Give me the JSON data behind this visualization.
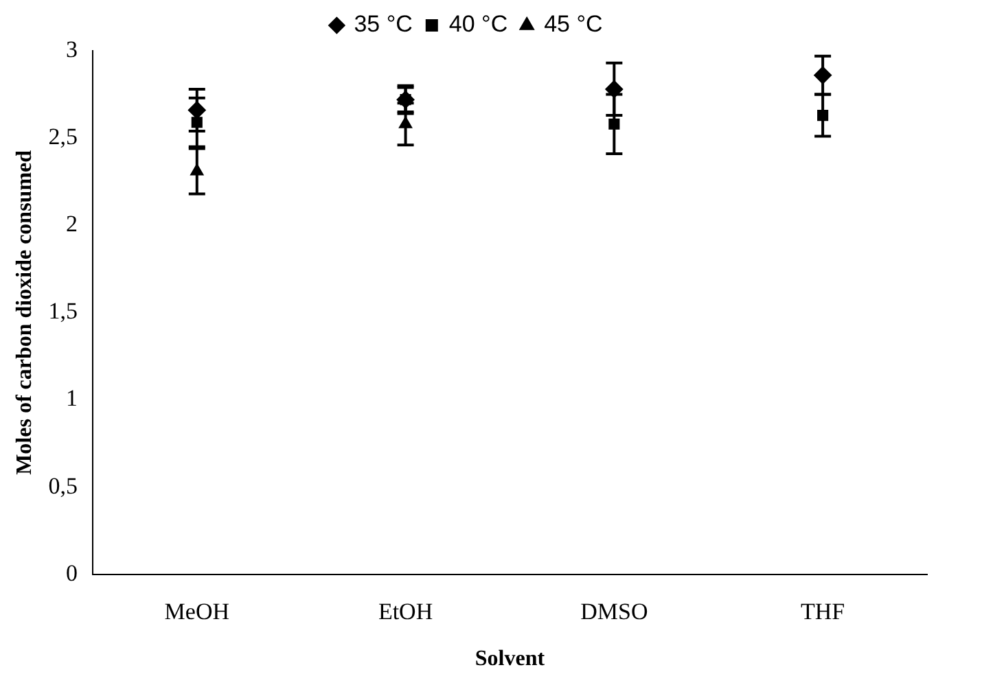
{
  "chart_data": {
    "type": "scatter",
    "xlabel": "Solvent",
    "ylabel": "Moles of carbon dioxide consumed",
    "categories": [
      "MeOH",
      "EtOH",
      "DMSO",
      "THF"
    ],
    "series": [
      {
        "name": "35 °C",
        "color": "#000000",
        "marker": "diamond",
        "values": [
          2.66,
          2.72,
          2.78,
          2.86
        ],
        "errors": [
          0.12,
          0.08,
          0.15,
          0.11
        ]
      },
      {
        "name": "40 °C",
        "color": "#000000",
        "marker": "square",
        "values": [
          2.59,
          2.72,
          2.58,
          2.63
        ],
        "errors": [
          0.14,
          0.07,
          0.17,
          0.12
        ]
      },
      {
        "name": "45 °C",
        "color": "#000000",
        "marker": "triangle",
        "values": [
          2.31,
          2.58,
          null,
          null
        ],
        "errors": [
          0.13,
          0.12,
          null,
          null
        ]
      }
    ],
    "ylim": [
      0,
      3
    ],
    "yticks": [
      0,
      {
        "value": 0.5,
        "label": "0,5"
      },
      1,
      {
        "value": 1.5,
        "label": "1,5"
      },
      2,
      {
        "value": 2.5,
        "label": "2,5"
      },
      3
    ],
    "grid": false,
    "legend": "top"
  }
}
